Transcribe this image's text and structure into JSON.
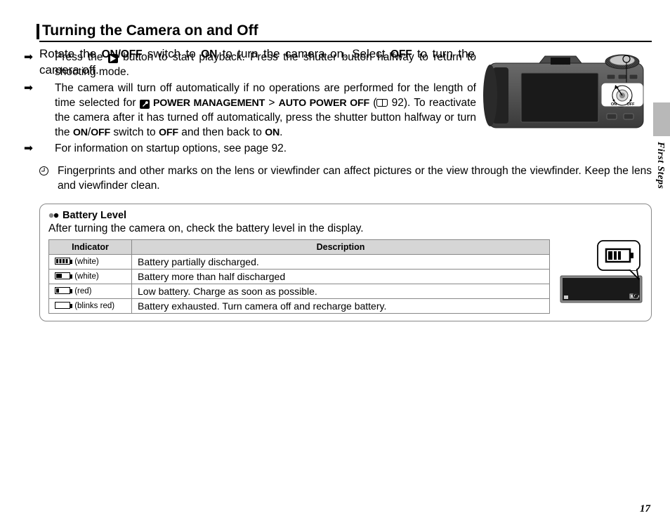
{
  "side_label": "First Steps",
  "page_number": "17",
  "section_title": "Turning the Camera on and Off",
  "intro": {
    "pre1": "Rotate the ",
    "b1": "ON/OFF",
    "mid1": " switch to ",
    "b2": "ON",
    "mid2": " to turn the camera on.  Select ",
    "b3": "OFF",
    "post": " to turn the camera off."
  },
  "bullets": [
    {
      "marker": "➡",
      "segs": [
        {
          "t": "Press the "
        },
        {
          "icon": "play"
        },
        {
          "t": " button to start playback.  Press the shutter button halfway to return to shooting mode."
        }
      ],
      "narrow": true
    },
    {
      "marker": "➡",
      "segs": [
        {
          "t": "The camera will turn off automatically if no operations are performed for the length of time selected for "
        },
        {
          "icon": "wrench"
        },
        {
          "t": " ",
          "pad": true
        },
        {
          "b": "POWER MANAGEMENT"
        },
        {
          "t": " > "
        },
        {
          "b": "AUTO POWER OFF"
        },
        {
          "t": " ("
        },
        {
          "icon": "pageref"
        },
        {
          "t": " 92).  To reactivate the camera after it has turned off automatically, press the shutter button halfway or turn the "
        },
        {
          "b": "ON"
        },
        {
          "t": "/"
        },
        {
          "b": "OFF"
        },
        {
          "t": " switch to "
        },
        {
          "b": "OFF"
        },
        {
          "t": " and then back to "
        },
        {
          "b": "ON"
        },
        {
          "t": "."
        }
      ],
      "narrow": false
    },
    {
      "marker": "➡",
      "segs": [
        {
          "t": "For information on startup options, see page 92."
        }
      ],
      "narrow": false
    }
  ],
  "caution": "Fingerprints and other marks on the lens or viewfinder can affect pictures or the view through the viewfinder.  Keep the lens and viewfinder clean.",
  "info": {
    "title": "Battery Level",
    "lead": "After turning the camera on, check the battery level in the display.",
    "columns": [
      "Indicator",
      "Description"
    ],
    "rows": [
      {
        "fill": 65,
        "stripes": true,
        "label": "(white)",
        "desc": "Battery partially discharged."
      },
      {
        "fill": 45,
        "stripes": false,
        "label": "(white)",
        "desc": "Battery more than half discharged"
      },
      {
        "fill": 20,
        "stripes": false,
        "label": "(red)",
        "desc": "Low battery.  Charge as soon as possible."
      },
      {
        "fill": 0,
        "stripes": false,
        "label": "(blinks red)",
        "desc": "Battery exhausted.  Turn camera off and recharge battery."
      }
    ]
  },
  "colors": {
    "tab_gray": "#b8b8b8",
    "table_header": "#d6d6d6",
    "border_gray": "#888888"
  },
  "camera_svg_labels": {
    "on": "ON",
    "off": "OFF"
  }
}
